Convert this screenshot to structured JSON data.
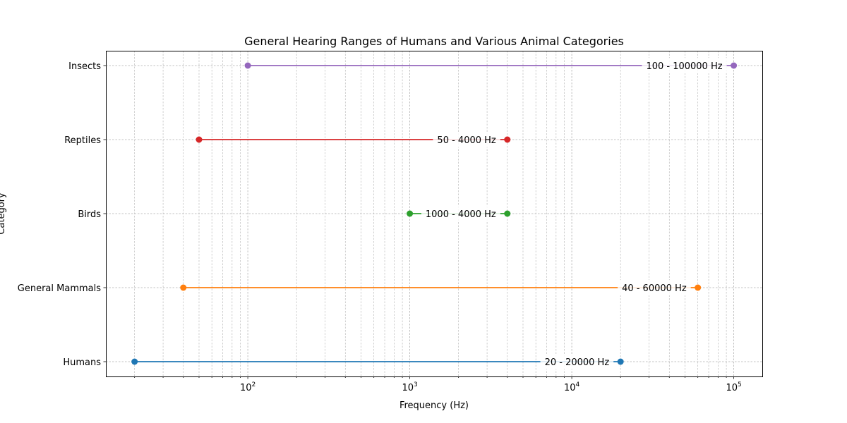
{
  "chart_data": {
    "type": "range",
    "title": "General Hearing Ranges of Humans and Various Animal Categories",
    "xlabel": "Frequency (Hz)",
    "ylabel": "Category",
    "xscale": "log",
    "xlim": [
      13.3,
      150000
    ],
    "grid": true,
    "x_ticks": [
      {
        "value": 100,
        "base": "10",
        "exp": "2"
      },
      {
        "value": 1000,
        "base": "10",
        "exp": "3"
      },
      {
        "value": 10000,
        "base": "10",
        "exp": "4"
      },
      {
        "value": 100000,
        "base": "10",
        "exp": "5"
      }
    ],
    "categories": [
      "Humans",
      "General Mammals",
      "Birds",
      "Reptiles",
      "Insects"
    ],
    "series": [
      {
        "category": "Humans",
        "low": 20,
        "high": 20000,
        "label": "20 - 20000 Hz",
        "color": "#1f77b4"
      },
      {
        "category": "General Mammals",
        "low": 40,
        "high": 60000,
        "label": "40 - 60000 Hz",
        "color": "#ff7f0e"
      },
      {
        "category": "Birds",
        "low": 1000,
        "high": 4000,
        "label": "1000 - 4000 Hz",
        "color": "#2ca02c"
      },
      {
        "category": "Reptiles",
        "low": 50,
        "high": 4000,
        "label": "50 - 4000 Hz",
        "color": "#d62728"
      },
      {
        "category": "Insects",
        "low": 100,
        "high": 100000,
        "label": "100 - 100000 Hz",
        "color": "#9467bd"
      }
    ]
  }
}
